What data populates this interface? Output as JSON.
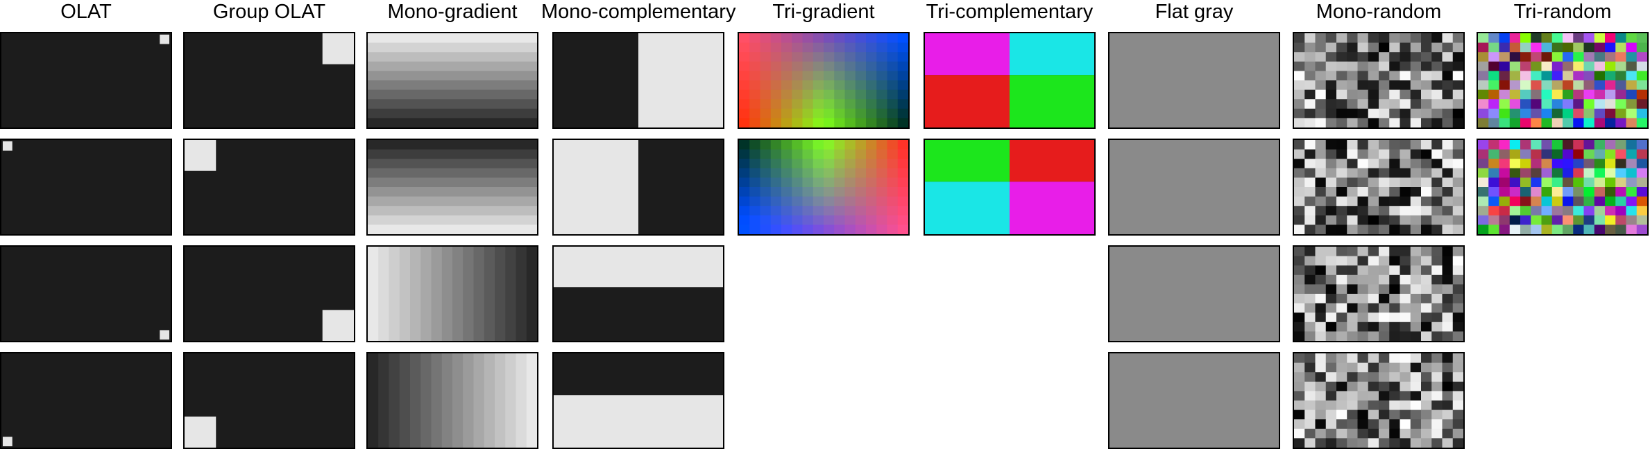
{
  "figure": {
    "columns": [
      {
        "key": "olat",
        "title": "OLAT",
        "panel_count": 4
      },
      {
        "key": "group-olat",
        "title": "Group OLAT",
        "panel_count": 4
      },
      {
        "key": "mono-gradient",
        "title": "Mono-gradient",
        "panel_count": 4
      },
      {
        "key": "mono-complementary",
        "title": "Mono-complementary",
        "panel_count": 4
      },
      {
        "key": "tri-gradient",
        "title": "Tri-gradient",
        "panel_count": 2
      },
      {
        "key": "tri-complementary",
        "title": "Tri-complementary",
        "panel_count": 2
      },
      {
        "key": "flat-gray",
        "title": "Flat gray",
        "panel_count": 4
      },
      {
        "key": "mono-random",
        "title": "Mono-random",
        "panel_count": 4
      },
      {
        "key": "tri-random",
        "title": "Tri-random",
        "panel_count": 2
      }
    ],
    "colors": {
      "dark": "#1c1c1c",
      "light": "#e6e6e6",
      "gray": "#8a8a8a",
      "magenta": "#e81ee8",
      "cyan": "#1ae6e6",
      "red": "#e61c1c",
      "green": "#1ce61c",
      "border": "#000000"
    }
  }
}
